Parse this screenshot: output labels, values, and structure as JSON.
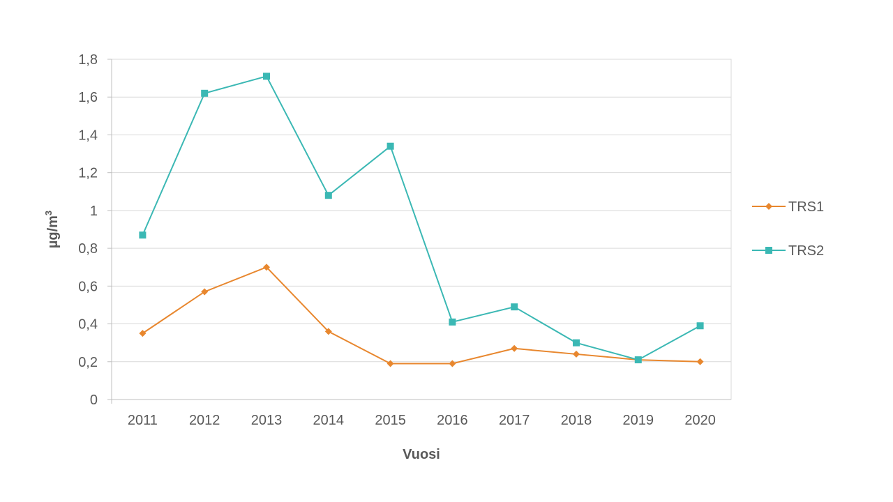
{
  "chart_data": {
    "type": "line",
    "title": "",
    "xlabel": "Vuosi",
    "ylabel": "µg/m",
    "ylabel_superscript": "3",
    "categories": [
      "2011",
      "2012",
      "2013",
      "2014",
      "2015",
      "2016",
      "2017",
      "2018",
      "2019",
      "2020"
    ],
    "ylim": [
      0,
      1.8
    ],
    "yticks": [
      "0",
      "0,2",
      "0,4",
      "0,6",
      "0,8",
      "1",
      "1,2",
      "1,4",
      "1,6",
      "1,8"
    ],
    "grid": true,
    "legend_position": "right",
    "series": [
      {
        "name": "TRS1",
        "color": "#E8872E",
        "marker": "diamond",
        "values": [
          0.35,
          0.57,
          0.7,
          0.36,
          0.19,
          0.19,
          0.27,
          0.24,
          0.21,
          0.2
        ]
      },
      {
        "name": "TRS2",
        "color": "#3BB8B4",
        "marker": "square",
        "values": [
          0.87,
          1.62,
          1.71,
          1.08,
          1.34,
          0.41,
          0.49,
          0.3,
          0.21,
          0.39
        ]
      }
    ]
  }
}
